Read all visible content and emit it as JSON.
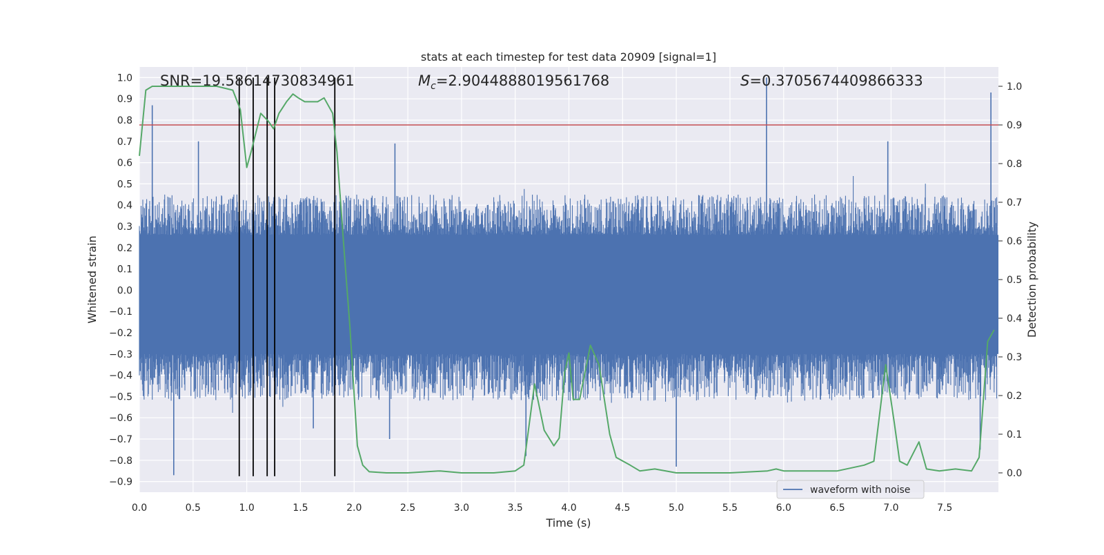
{
  "chart_data": {
    "type": "line",
    "title": "stats at each timestep for test data 20909 [signal=1]",
    "xlabel": "Time (s)",
    "ylabel_left": "Whitened strain",
    "ylabel_right": "Detection probability",
    "xlim": [
      0.0,
      8.0
    ],
    "ylim_left": [
      -0.95,
      1.05
    ],
    "ylim_right": [
      -0.05,
      1.05
    ],
    "x_ticks": [
      "0.0",
      "0.5",
      "1.0",
      "1.5",
      "2.0",
      "2.5",
      "3.0",
      "3.5",
      "4.0",
      "4.5",
      "5.0",
      "5.5",
      "6.0",
      "6.5",
      "7.0",
      "7.5"
    ],
    "y_ticks_left": [
      "1.0",
      "0.9",
      "0.8",
      "0.7",
      "0.6",
      "0.5",
      "0.4",
      "0.3",
      "0.2",
      "0.1",
      "0.0",
      "−0.1",
      "−0.2",
      "−0.3",
      "−0.4",
      "−0.5",
      "−0.6",
      "−0.7",
      "−0.8",
      "−0.9"
    ],
    "y_ticks_right": [
      "1.0",
      "0.9",
      "0.8",
      "0.7",
      "0.6",
      "0.5",
      "0.4",
      "0.3",
      "0.2",
      "0.1",
      "0.0"
    ],
    "grid": true,
    "legend_position": "lower-right",
    "annotations": {
      "snr": "SNR=19.58614730834961",
      "mc_symbol": "M",
      "mc_sub": "c",
      "mc_value": "=2.9044888019561768",
      "s_symbol": "S",
      "s_value": "=0.3705674409866333"
    },
    "series": [
      {
        "name": "waveform with noise",
        "axis": "left",
        "color": "#4c72b0",
        "kind": "noise-waveform",
        "core_band": [
          -0.3,
          0.26
        ],
        "typical_peak_max": 0.45,
        "typical_peak_min": -0.52,
        "notable_peaks": [
          {
            "x": 0.12,
            "y": 0.87
          },
          {
            "x": 5.84,
            "y": 1.0
          },
          {
            "x": 7.93,
            "y": 0.93
          },
          {
            "x": 0.32,
            "y": -0.87
          },
          {
            "x": 5.0,
            "y": -0.83
          },
          {
            "x": 3.6,
            "y": -0.78
          },
          {
            "x": 7.83,
            "y": -0.75
          },
          {
            "x": 0.55,
            "y": 0.7
          },
          {
            "x": 2.38,
            "y": 0.69
          },
          {
            "x": 6.97,
            "y": 0.7
          },
          {
            "x": 1.62,
            "y": -0.65
          },
          {
            "x": 2.33,
            "y": -0.7
          }
        ]
      },
      {
        "name": "",
        "axis": "right",
        "color": "#55a868",
        "points": [
          [
            0.0,
            0.82
          ],
          [
            0.06,
            0.99
          ],
          [
            0.12,
            1.0
          ],
          [
            0.3,
            1.0
          ],
          [
            0.6,
            1.0
          ],
          [
            0.72,
            1.0
          ],
          [
            0.87,
            0.99
          ],
          [
            0.94,
            0.94
          ],
          [
            1.0,
            0.79
          ],
          [
            1.04,
            0.83
          ],
          [
            1.13,
            0.93
          ],
          [
            1.2,
            0.91
          ],
          [
            1.25,
            0.89
          ],
          [
            1.3,
            0.93
          ],
          [
            1.37,
            0.96
          ],
          [
            1.43,
            0.98
          ],
          [
            1.48,
            0.97
          ],
          [
            1.54,
            0.96
          ],
          [
            1.6,
            0.96
          ],
          [
            1.66,
            0.96
          ],
          [
            1.72,
            0.97
          ],
          [
            1.8,
            0.93
          ],
          [
            1.84,
            0.83
          ],
          [
            1.9,
            0.6
          ],
          [
            1.96,
            0.38
          ],
          [
            2.03,
            0.07
          ],
          [
            2.08,
            0.02
          ],
          [
            2.14,
            0.003
          ],
          [
            2.3,
            0.0
          ],
          [
            2.5,
            0.0
          ],
          [
            2.8,
            0.005
          ],
          [
            3.0,
            0.0
          ],
          [
            3.3,
            0.0
          ],
          [
            3.5,
            0.005
          ],
          [
            3.58,
            0.02
          ],
          [
            3.68,
            0.23
          ],
          [
            3.77,
            0.11
          ],
          [
            3.86,
            0.07
          ],
          [
            3.91,
            0.09
          ],
          [
            3.96,
            0.26
          ],
          [
            4.0,
            0.31
          ],
          [
            4.04,
            0.19
          ],
          [
            4.1,
            0.19
          ],
          [
            4.2,
            0.33
          ],
          [
            4.28,
            0.28
          ],
          [
            4.38,
            0.1
          ],
          [
            4.44,
            0.04
          ],
          [
            4.57,
            0.02
          ],
          [
            4.66,
            0.005
          ],
          [
            4.8,
            0.01
          ],
          [
            5.0,
            0.0
          ],
          [
            5.5,
            0.0
          ],
          [
            5.85,
            0.005
          ],
          [
            5.93,
            0.01
          ],
          [
            6.0,
            0.005
          ],
          [
            6.5,
            0.005
          ],
          [
            6.75,
            0.02
          ],
          [
            6.84,
            0.03
          ],
          [
            6.95,
            0.28
          ],
          [
            7.03,
            0.13
          ],
          [
            7.08,
            0.03
          ],
          [
            7.15,
            0.02
          ],
          [
            7.26,
            0.08
          ],
          [
            7.33,
            0.01
          ],
          [
            7.45,
            0.005
          ],
          [
            7.6,
            0.01
          ],
          [
            7.75,
            0.005
          ],
          [
            7.82,
            0.04
          ],
          [
            7.9,
            0.34
          ],
          [
            7.96,
            0.37
          ]
        ]
      }
    ],
    "threshold": {
      "axis": "right",
      "value": 0.9,
      "color": "#c44e52"
    },
    "event_lines": {
      "color": "#000000",
      "x": [
        0.93,
        1.06,
        1.19,
        1.26,
        1.82
      ],
      "y_range": [
        -0.875,
        1.0
      ]
    }
  },
  "legend": {
    "label": "waveform with noise"
  }
}
